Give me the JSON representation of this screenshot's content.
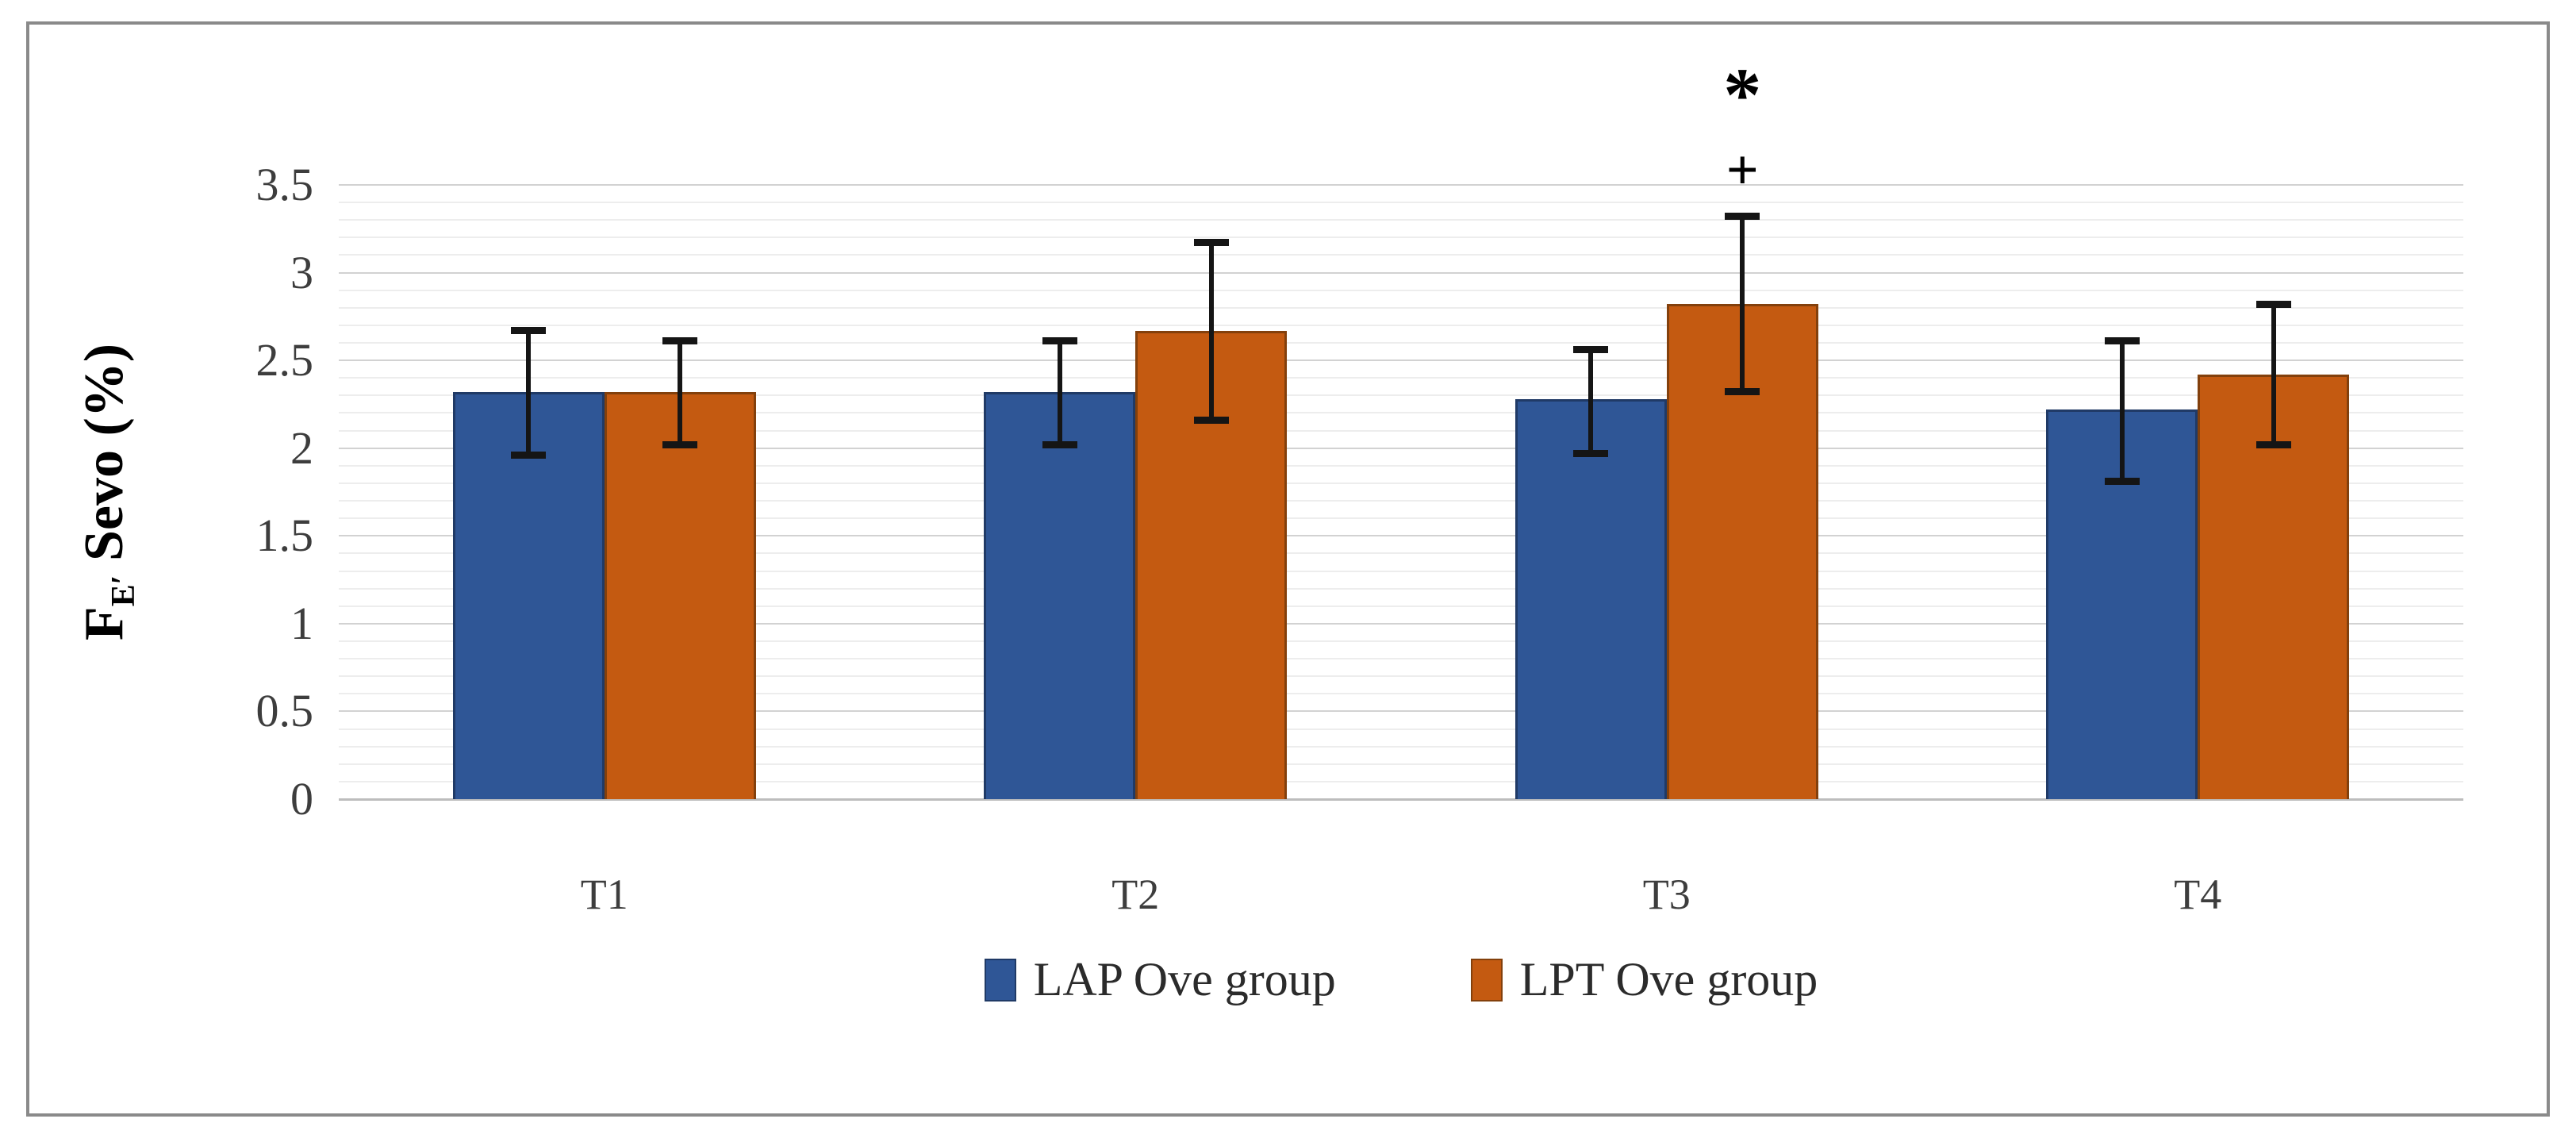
{
  "figure": {
    "background": "#ffffff",
    "border_color": "#8a8a8a"
  },
  "chart_data": {
    "type": "bar",
    "title": "",
    "categories": [
      "T1",
      "T2",
      "T3",
      "T4"
    ],
    "series": [
      {
        "name": "LAP Ove group",
        "color": "#2f5696",
        "edge_color": "#203a66",
        "values": [
          2.32,
          2.32,
          2.28,
          2.22
        ],
        "error_low": [
          1.96,
          2.02,
          1.97,
          1.81
        ],
        "error_high": [
          2.67,
          2.61,
          2.56,
          2.61
        ]
      },
      {
        "name": "LPT Ove group",
        "color": "#c45a11",
        "edge_color": "#83400c",
        "values": [
          2.32,
          2.67,
          2.82,
          2.42
        ],
        "error_low": [
          2.02,
          2.16,
          2.32,
          2.02
        ],
        "error_high": [
          2.61,
          3.17,
          3.32,
          2.82
        ]
      }
    ],
    "xlabel": "",
    "ylabel": "FE′ Sevo (%)",
    "ylabel_parts": {
      "main": "F",
      "sub": "E′",
      "rest": " Sevo (%)"
    },
    "ylim": [
      0,
      3.5
    ],
    "yticks": [
      {
        "label": "3.5",
        "value": 3.5
      },
      {
        "label": "3",
        "value": 3.0
      },
      {
        "label": "2.5",
        "value": 2.5
      },
      {
        "label": "2",
        "value": 2.0
      },
      {
        "label": "1.5",
        "value": 1.5
      },
      {
        "label": "1",
        "value": 1.0
      },
      {
        "label": "0.5",
        "value": 0.5
      },
      {
        "label": "0",
        "value": 0.0
      }
    ],
    "grid": {
      "minor_step": 0.1,
      "major_step": 0.5,
      "orientation": "horizontal"
    },
    "legend_position": "bottom-center",
    "error_bar_color": "#151515",
    "annotations": [
      {
        "category": "T3",
        "series": "LPT Ove group",
        "symbols": [
          "*",
          "+"
        ]
      }
    ]
  }
}
